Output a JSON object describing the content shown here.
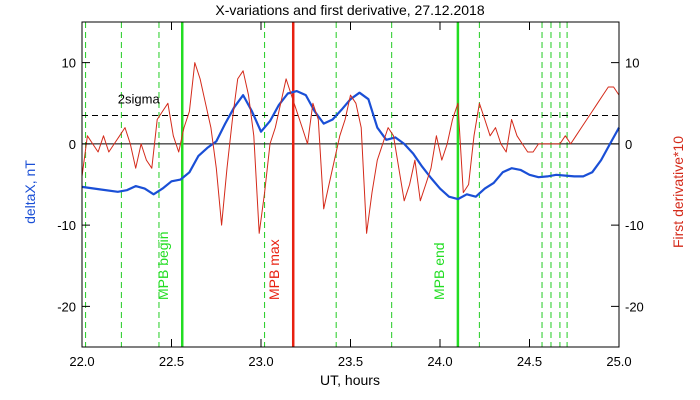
{
  "chart_data": {
    "type": "line",
    "title": "X-variations and first derivative, 27.12.2018",
    "xlabel": "UT, hours",
    "ylabel_left": "deltaX, nT",
    "ylabel_right": "First derivative*10",
    "xlim": [
      22.0,
      25.0
    ],
    "ylim": [
      -25,
      15
    ],
    "x_ticks": [
      "22.0",
      "22.5",
      "23.0",
      "23.5",
      "24.0",
      "24.5",
      "25.0"
    ],
    "x_tick_values": [
      22.0,
      22.5,
      23.0,
      23.5,
      24.0,
      24.5,
      25.0
    ],
    "y_ticks": [
      "10",
      "0",
      "-10",
      "-20"
    ],
    "y_tick_values": [
      10,
      0,
      -10,
      -20
    ],
    "y_ticks_right": [
      "10",
      "0",
      "-10",
      "-20"
    ],
    "series": [
      {
        "name": "deltaX, nT",
        "color": "#1a4fd6",
        "x": [
          22.0,
          22.1,
          22.2,
          22.25,
          22.3,
          22.35,
          22.4,
          22.45,
          22.5,
          22.55,
          22.6,
          22.65,
          22.7,
          22.75,
          22.8,
          22.85,
          22.9,
          22.95,
          23.0,
          23.05,
          23.1,
          23.15,
          23.2,
          23.25,
          23.3,
          23.35,
          23.4,
          23.45,
          23.5,
          23.55,
          23.6,
          23.65,
          23.7,
          23.75,
          23.8,
          23.85,
          23.9,
          23.95,
          24.0,
          24.05,
          24.1,
          24.15,
          24.2,
          24.25,
          24.3,
          24.35,
          24.4,
          24.45,
          24.5,
          24.55,
          24.6,
          24.65,
          24.7,
          24.75,
          24.8,
          24.85,
          24.9,
          24.95,
          25.0
        ],
        "y": [
          -5.3,
          -5.6,
          -5.9,
          -5.7,
          -5.2,
          -5.5,
          -6.2,
          -5.5,
          -4.6,
          -4.4,
          -3.5,
          -1.5,
          -0.5,
          0.3,
          2.5,
          4.5,
          6.0,
          4.0,
          1.5,
          2.8,
          4.8,
          6.2,
          6.5,
          6.0,
          4.0,
          2.5,
          3.0,
          4.2,
          5.5,
          6.3,
          5.5,
          2.0,
          0.5,
          0.8,
          0.0,
          -1.2,
          -2.8,
          -4.2,
          -5.5,
          -6.5,
          -6.8,
          -6.2,
          -6.5,
          -5.5,
          -4.8,
          -3.5,
          -3.0,
          -3.2,
          -3.8,
          -4.1,
          -4.0,
          -3.8,
          -3.9,
          -4.0,
          -4.0,
          -3.5,
          -2.0,
          0.0,
          2.0
        ]
      },
      {
        "name": "First derivative*10",
        "color": "#d42a1a",
        "x": [
          22.0,
          22.03,
          22.06,
          22.09,
          22.12,
          22.15,
          22.18,
          22.21,
          22.24,
          22.27,
          22.3,
          22.33,
          22.36,
          22.39,
          22.42,
          22.45,
          22.48,
          22.51,
          22.54,
          22.57,
          22.6,
          22.63,
          22.66,
          22.69,
          22.72,
          22.75,
          22.78,
          22.81,
          22.84,
          22.87,
          22.9,
          22.93,
          22.96,
          22.99,
          23.02,
          23.05,
          23.08,
          23.11,
          23.14,
          23.17,
          23.2,
          23.23,
          23.26,
          23.29,
          23.32,
          23.35,
          23.38,
          23.41,
          23.44,
          23.47,
          23.5,
          23.53,
          23.56,
          23.59,
          23.62,
          23.65,
          23.68,
          23.71,
          23.74,
          23.77,
          23.8,
          23.83,
          23.86,
          23.89,
          23.92,
          23.95,
          23.98,
          24.01,
          24.04,
          24.07,
          24.1,
          24.13,
          24.16,
          24.19,
          24.22,
          24.25,
          24.28,
          24.31,
          24.34,
          24.37,
          24.4,
          24.43,
          24.46,
          24.49,
          24.52,
          24.55,
          24.58,
          24.61,
          24.64,
          24.67,
          24.7,
          24.73,
          24.76,
          24.79,
          24.82,
          24.85,
          24.88,
          24.91,
          24.94,
          24.97,
          25.0
        ],
        "y": [
          -4,
          1,
          0,
          -1,
          1,
          -1,
          0,
          1,
          2,
          0,
          -3,
          0,
          -2,
          -3,
          3,
          4,
          5,
          1,
          -1,
          2,
          4,
          10,
          8,
          5,
          2,
          -3,
          -10,
          -3,
          3,
          8,
          9,
          6,
          1,
          -11,
          -6,
          0,
          2,
          5,
          8,
          6,
          4,
          2,
          0,
          5,
          3,
          -8,
          -5,
          -2,
          1,
          3,
          6,
          5,
          2,
          -11,
          -6,
          -2,
          0,
          2,
          1,
          -3,
          -7,
          -5,
          -2,
          -7,
          -5,
          -3,
          1,
          -2,
          0,
          3,
          5,
          -6,
          -5,
          1,
          5,
          3,
          1,
          2,
          0,
          -1,
          3,
          1,
          0,
          -1,
          -1,
          0,
          0,
          0,
          0,
          0,
          1,
          0,
          1,
          2,
          3,
          4,
          5,
          6,
          7,
          7,
          6
        ]
      }
    ],
    "thresholds": [
      {
        "label": "2sigma",
        "value": 3.5,
        "style": "dashed",
        "color": "#000000"
      },
      {
        "label": "",
        "value": 0,
        "style": "solid",
        "color": "#000000"
      }
    ],
    "event_lines": [
      {
        "label": "MPB begin",
        "x": 22.56,
        "color": "#22dd22"
      },
      {
        "label": "MPB max",
        "x": 23.18,
        "color": "#e82010"
      },
      {
        "label": "MPB end",
        "x": 24.1,
        "color": "#22dd22"
      }
    ],
    "dashed_markers": {
      "color": "#22cc22",
      "x": [
        22.02,
        22.22,
        22.43,
        23.02,
        23.42,
        23.73,
        24.22,
        24.57,
        24.62,
        24.67,
        24.71
      ]
    },
    "grid": false,
    "legend": "none"
  }
}
